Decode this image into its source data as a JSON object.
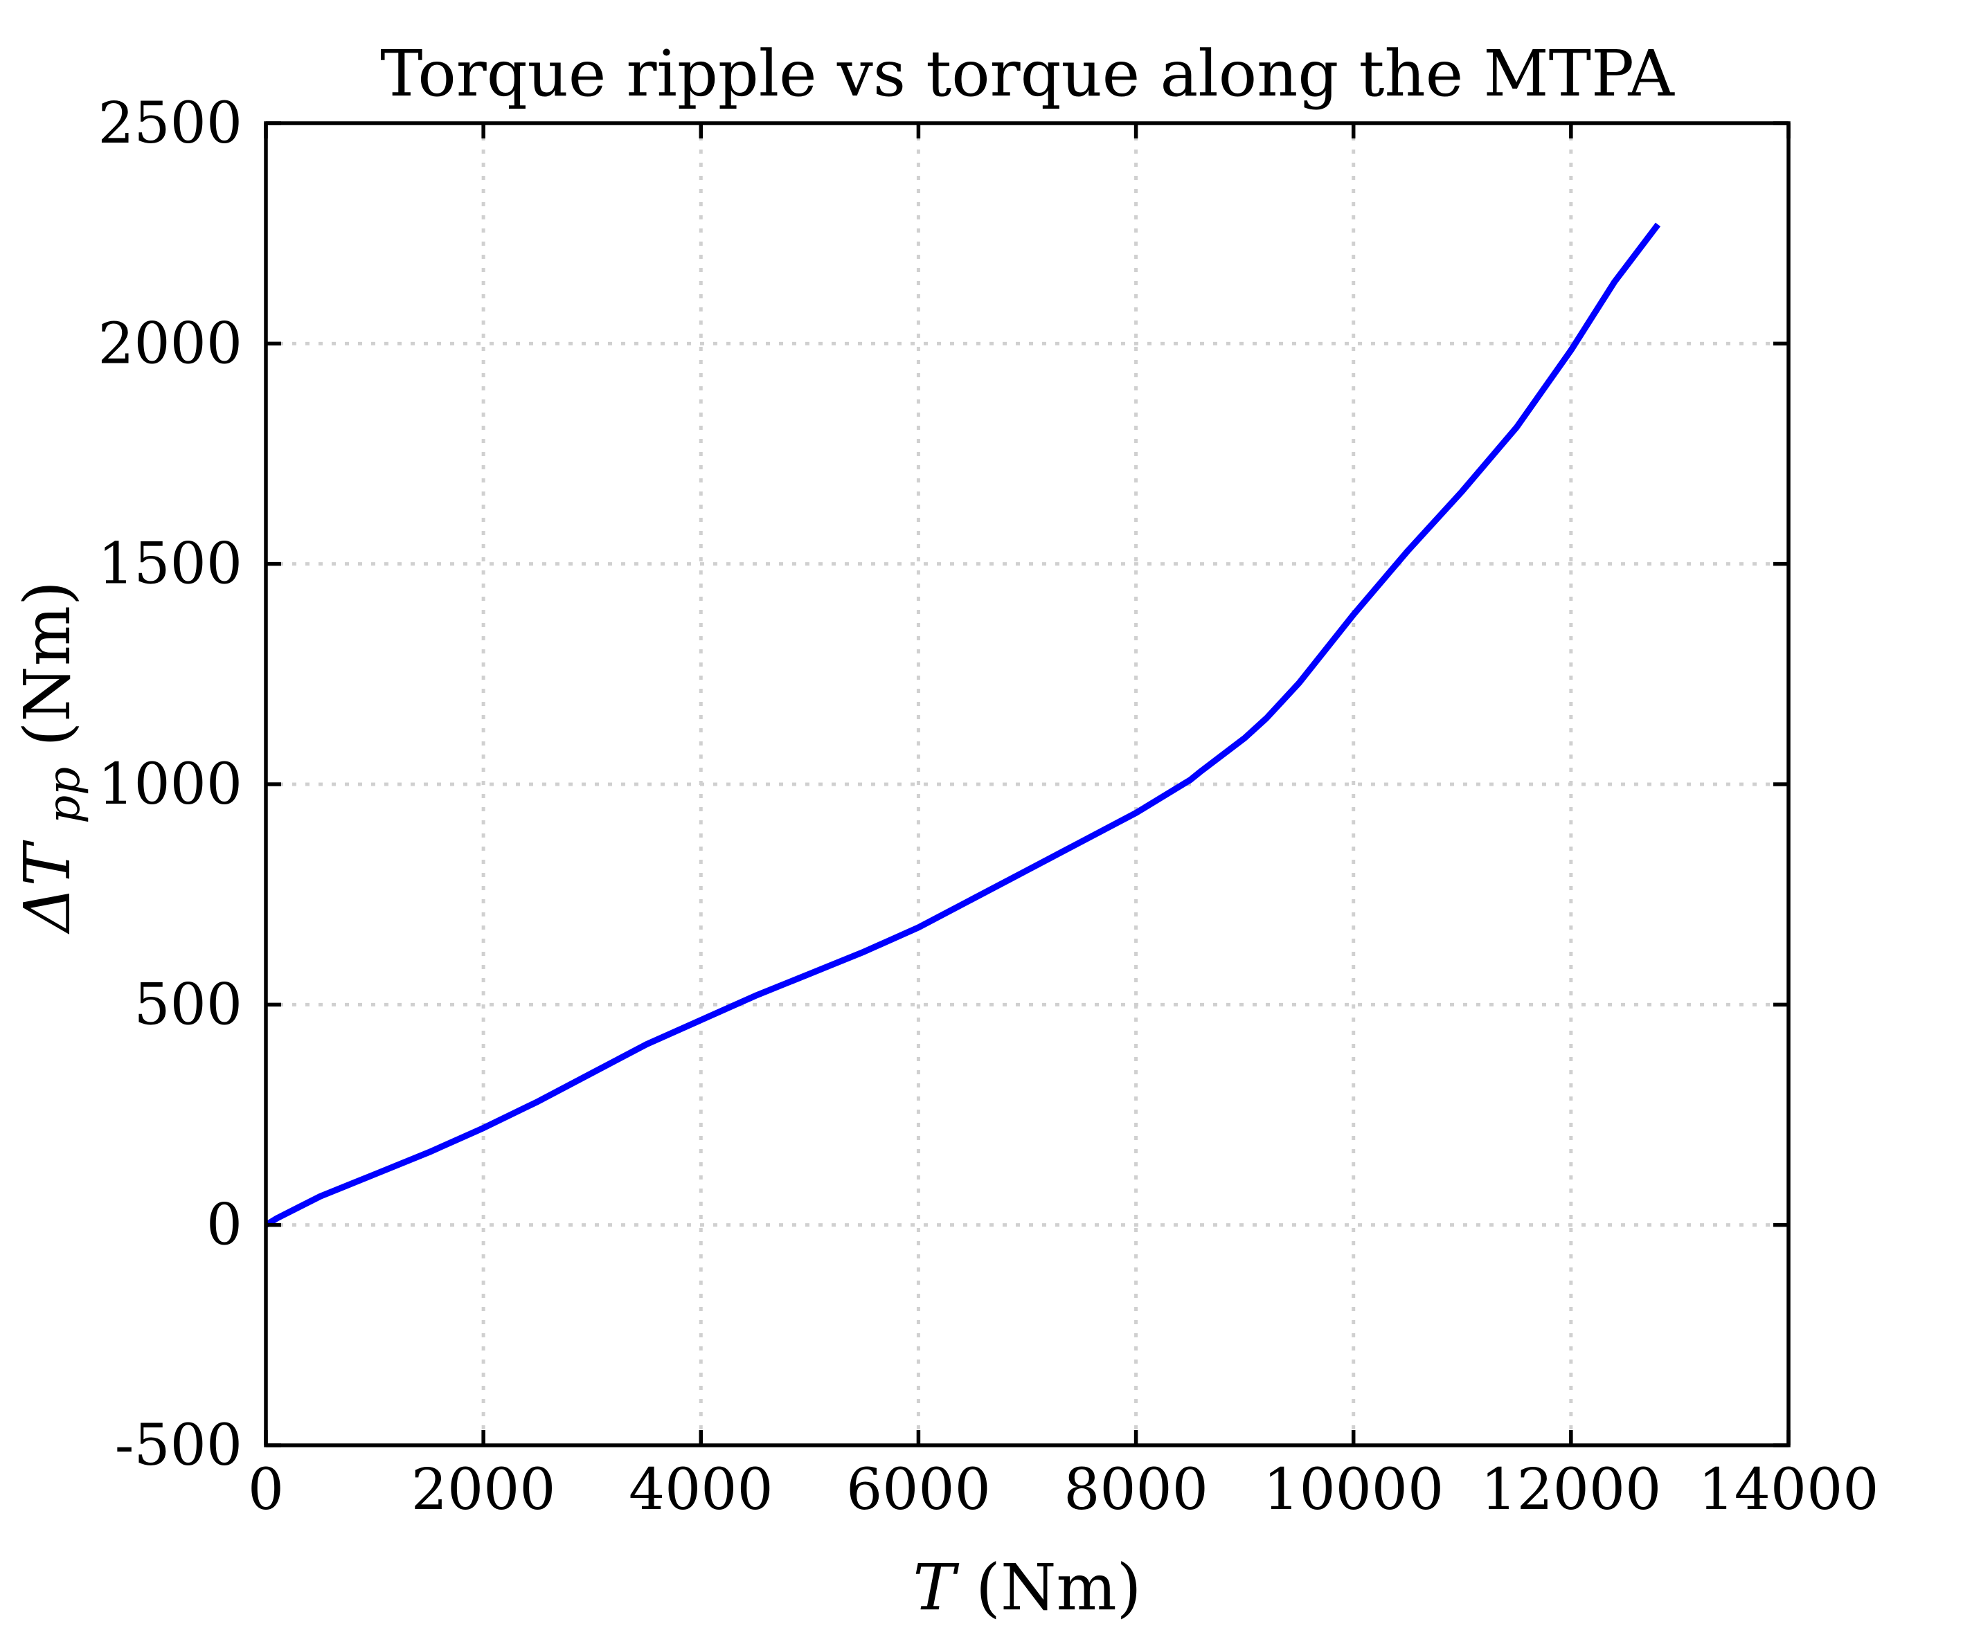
{
  "chart_data": {
    "type": "line",
    "title": "Torque ripple vs torque along the MTPA",
    "xlabel": {
      "symbol": "T",
      "unit": "(Nm)"
    },
    "ylabel": {
      "symbol": "ΔT",
      "subscript": "pp",
      "unit": "(Nm)"
    },
    "xlim": [
      0,
      14000
    ],
    "ylim": [
      -500,
      2500
    ],
    "xticks": [
      0,
      2000,
      4000,
      6000,
      8000,
      10000,
      12000,
      14000
    ],
    "yticks": [
      -500,
      0,
      500,
      1000,
      1500,
      2000,
      2500
    ],
    "grid": true,
    "series": [
      {
        "color": "#0000ff",
        "x": [
          0,
          100,
          300,
          500,
          800,
          1000,
          1500,
          2000,
          2500,
          3000,
          3500,
          4000,
          4500,
          5000,
          5500,
          6000,
          6500,
          7000,
          7500,
          8000,
          8500,
          8600,
          9000,
          9200,
          9500,
          10000,
          10500,
          11000,
          11500,
          12000,
          12400,
          12800
        ],
        "y": [
          0,
          15,
          40,
          65,
          95,
          115,
          165,
          220,
          280,
          345,
          410,
          465,
          520,
          570,
          620,
          675,
          740,
          805,
          870,
          935,
          1010,
          1030,
          1105,
          1150,
          1230,
          1385,
          1530,
          1665,
          1810,
          1985,
          2140,
          2270
        ]
      }
    ]
  }
}
